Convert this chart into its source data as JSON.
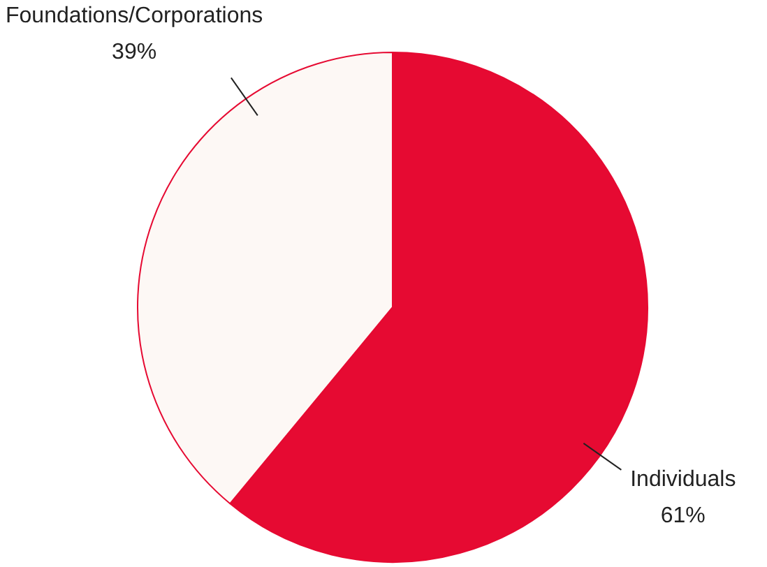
{
  "chart_data": {
    "type": "pie",
    "categories": [
      "Individuals",
      "Foundations/Corporations"
    ],
    "values": [
      61,
      39
    ],
    "colors": [
      "#e60a32",
      "#fdf8f5"
    ],
    "value_labels": [
      "61%",
      "39%"
    ],
    "legend": false
  }
}
